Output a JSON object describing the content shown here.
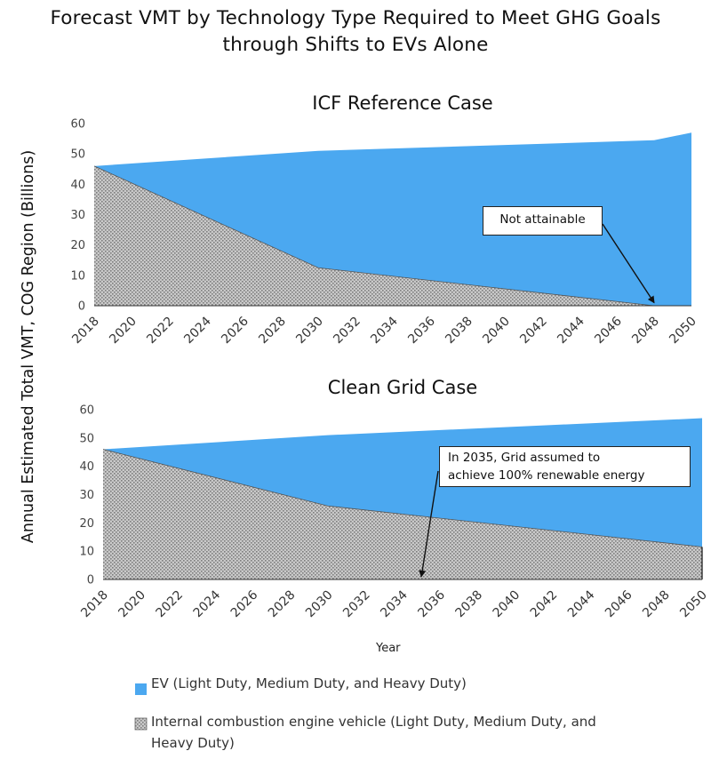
{
  "title_line1": "Forecast VMT by Technology Type Required to Meet GHG Goals",
  "title_line2": "through Shifts to EVs Alone",
  "ylabel": "Annual Estimated Total VMT, COG Region (Billions)",
  "xlabel": "Year",
  "colors": {
    "ev": "#4ba8f0",
    "ice_fill": "#c9c9c9",
    "ice_pattern": "#7d7d7d"
  },
  "legend": {
    "ev": "EV (Light Duty, Medium Duty, and Heavy Duty)",
    "ice_line1": "Internal combustion engine vehicle (Light Duty, Medium Duty, and",
    "ice_line2": "Heavy Duty)"
  },
  "chart_data": [
    {
      "type": "area",
      "stacked": true,
      "title": "ICF Reference Case",
      "x": [
        2018,
        2030,
        2048,
        2050
      ],
      "series": [
        {
          "name": "Internal combustion engine vehicle (Light Duty, Medium Duty, and Heavy Duty)",
          "values": [
            46,
            12.5,
            0,
            0
          ]
        },
        {
          "name": "EV (Light Duty, Medium Duty, and Heavy Duty)",
          "values": [
            0,
            38.5,
            54.5,
            57
          ]
        }
      ],
      "total": [
        46,
        51,
        54.5,
        57
      ],
      "xticks": [
        "2018",
        "2020",
        "2022",
        "2024",
        "2026",
        "2028",
        "2030",
        "2032",
        "2034",
        "2036",
        "2038",
        "2040",
        "2042",
        "2044",
        "2046",
        "2048",
        "2050"
      ],
      "yticks": [
        "0",
        "10",
        "20",
        "30",
        "40",
        "50",
        "60"
      ],
      "xlim": [
        2018,
        2050
      ],
      "ylim": [
        0,
        60
      ],
      "annotation": {
        "text": "Not attainable",
        "x": 2048,
        "y": 0
      }
    },
    {
      "type": "area",
      "stacked": true,
      "title": "Clean Grid Case",
      "x": [
        2018,
        2030,
        2050
      ],
      "series": [
        {
          "name": "Internal combustion engine vehicle (Light Duty, Medium Duty, and Heavy Duty)",
          "values": [
            46,
            26,
            11.5
          ]
        },
        {
          "name": "EV (Light Duty, Medium Duty, and Heavy Duty)",
          "values": [
            0,
            25,
            45.5
          ]
        }
      ],
      "total": [
        46,
        51,
        57
      ],
      "xticks": [
        "2018",
        "2020",
        "2022",
        "2024",
        "2026",
        "2028",
        "2030",
        "2032",
        "2034",
        "2036",
        "2038",
        "2040",
        "2042",
        "2044",
        "2046",
        "2048",
        "2050"
      ],
      "yticks": [
        "0",
        "10",
        "20",
        "30",
        "40",
        "50",
        "60"
      ],
      "xlim": [
        2018,
        2050
      ],
      "ylim": [
        0,
        60
      ],
      "annotation": {
        "line1": "In 2035, Grid assumed to",
        "line2": "achieve 100% renewable energy",
        "x": 2035,
        "y": 0
      }
    }
  ]
}
